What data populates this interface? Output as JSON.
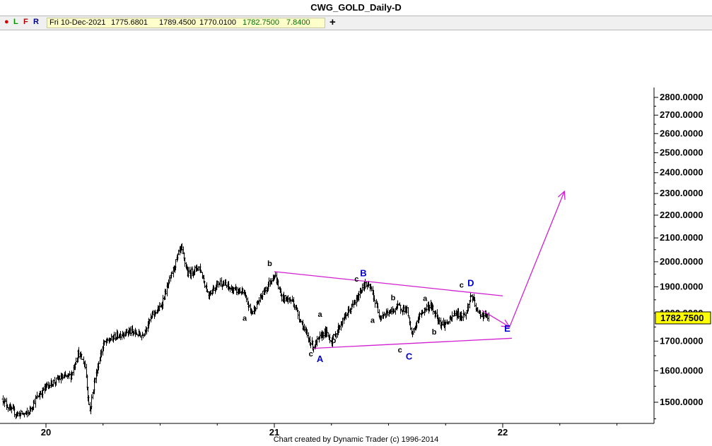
{
  "window": {
    "title": "CWG_GOLD_Daily-D"
  },
  "toolbar": {
    "buttons": [
      {
        "glyph": "●",
        "color": "#d00000"
      },
      {
        "glyph": "L",
        "color": "#009000"
      },
      {
        "glyph": "F",
        "color": "#b00000"
      },
      {
        "glyph": "R",
        "color": "#000080"
      }
    ],
    "plus_label": "+"
  },
  "info": {
    "date": "Fri 10-Dec-2021",
    "open": "1775.6801",
    "high": "1789.4500",
    "low": "1770.0100",
    "close": "1782.7500",
    "change": "7.8400"
  },
  "colors": {
    "bars": "#000000",
    "pattern": "#d020d0",
    "wave_major": "#0000cc",
    "wave_minor": "#000000",
    "last_price_bg": "#ffff00"
  },
  "footer": "Chart created by Dynamic Trader  (c) 1996-2014",
  "chart_data": {
    "type": "ohlc",
    "title": "CWG_GOLD_Daily-D",
    "y_ticks": [
      "1500.0000",
      "1600.0000",
      "1700.0000",
      "1800.0000",
      "1900.0000",
      "2000.0000",
      "2100.0000",
      "2200.0000",
      "2300.0000",
      "2400.0000",
      "2500.0000",
      "2600.0000",
      "2700.0000",
      "2800.0000"
    ],
    "y_tick_values": [
      1500,
      1600,
      1700,
      1800,
      1900,
      2000,
      2100,
      2200,
      2300,
      2400,
      2500,
      2600,
      2700,
      2800
    ],
    "x_ticks": [
      {
        "label": "20",
        "year": 2020.0
      },
      {
        "label": "21",
        "year": 2021.0
      },
      {
        "label": "22",
        "year": 2022.0
      }
    ],
    "last_price_label": "1782.7500",
    "last_price": 1782.75,
    "price_anchors": [
      [
        2019.81,
        1510
      ],
      [
        2019.84,
        1480
      ],
      [
        2019.87,
        1465
      ],
      [
        2019.92,
        1465
      ],
      [
        2019.95,
        1505
      ],
      [
        2020.0,
        1550
      ],
      [
        2020.06,
        1575
      ],
      [
        2020.11,
        1585
      ],
      [
        2020.14,
        1660
      ],
      [
        2020.17,
        1620
      ],
      [
        2020.19,
        1470
      ],
      [
        2020.21,
        1560
      ],
      [
        2020.25,
        1690
      ],
      [
        2020.3,
        1715
      ],
      [
        2020.36,
        1735
      ],
      [
        2020.42,
        1720
      ],
      [
        2020.47,
        1800
      ],
      [
        2020.5,
        1820
      ],
      [
        2020.55,
        1950
      ],
      [
        2020.59,
        2060
      ],
      [
        2020.62,
        1950
      ],
      [
        2020.67,
        1980
      ],
      [
        2020.71,
        1870
      ],
      [
        2020.76,
        1920
      ],
      [
        2020.81,
        1890
      ],
      [
        2020.86,
        1880
      ],
      [
        2020.9,
        1800
      ],
      [
        2020.95,
        1875
      ],
      [
        2021.0,
        1950
      ],
      [
        2021.03,
        1860
      ],
      [
        2021.08,
        1845
      ],
      [
        2021.14,
        1720
      ],
      [
        2021.17,
        1680
      ],
      [
        2021.22,
        1735
      ],
      [
        2021.25,
        1700
      ],
      [
        2021.31,
        1790
      ],
      [
        2021.36,
        1850
      ],
      [
        2021.39,
        1910
      ],
      [
        2021.42,
        1895
      ],
      [
        2021.46,
        1790
      ],
      [
        2021.51,
        1805
      ],
      [
        2021.54,
        1825
      ],
      [
        2021.58,
        1810
      ],
      [
        2021.6,
        1720
      ],
      [
        2021.64,
        1800
      ],
      [
        2021.68,
        1830
      ],
      [
        2021.71,
        1790
      ],
      [
        2021.73,
        1760
      ],
      [
        2021.76,
        1765
      ],
      [
        2021.79,
        1800
      ],
      [
        2021.82,
        1790
      ],
      [
        2021.84,
        1800
      ],
      [
        2021.86,
        1870
      ],
      [
        2021.89,
        1800
      ],
      [
        2021.91,
        1795
      ],
      [
        2021.94,
        1782.75
      ]
    ],
    "triangle_lines": [
      {
        "from": [
          2021.0,
          1960
        ],
        "to": [
          2022.0,
          1865
        ]
      },
      {
        "from": [
          2021.17,
          1675
        ],
        "to": [
          2022.04,
          1710
        ]
      }
    ],
    "projection_arrows": [
      {
        "from": [
          2021.91,
          1810
        ],
        "to": [
          2022.03,
          1750
        ]
      },
      {
        "from": [
          2022.03,
          1750
        ],
        "to": [
          2022.27,
          2310
        ]
      }
    ],
    "wave_labels": [
      {
        "text": "b",
        "x": 2020.98,
        "y": 1982,
        "kind": "minor"
      },
      {
        "text": "a",
        "x": 2020.87,
        "y": 1773,
        "kind": "minor"
      },
      {
        "text": "c",
        "x": 2021.16,
        "y": 1648,
        "kind": "minor"
      },
      {
        "text": "A",
        "x": 2021.2,
        "y": 1629,
        "kind": "major"
      },
      {
        "text": "a",
        "x": 2021.2,
        "y": 1786,
        "kind": "minor"
      },
      {
        "text": "b",
        "x": 2021.26,
        "y": 1693,
        "kind": "minor"
      },
      {
        "text": "c",
        "x": 2021.36,
        "y": 1920,
        "kind": "minor"
      },
      {
        "text": "B",
        "x": 2021.39,
        "y": 1941,
        "kind": "major"
      },
      {
        "text": "a",
        "x": 2021.43,
        "y": 1765,
        "kind": "minor"
      },
      {
        "text": "b",
        "x": 2021.52,
        "y": 1848,
        "kind": "minor"
      },
      {
        "text": "c",
        "x": 2021.55,
        "y": 1661,
        "kind": "minor"
      },
      {
        "text": "C",
        "x": 2021.59,
        "y": 1637,
        "kind": "major"
      },
      {
        "text": "a",
        "x": 2021.66,
        "y": 1846,
        "kind": "minor"
      },
      {
        "text": "b",
        "x": 2021.7,
        "y": 1723,
        "kind": "minor"
      },
      {
        "text": "c",
        "x": 2021.82,
        "y": 1897,
        "kind": "minor"
      },
      {
        "text": "D",
        "x": 2021.86,
        "y": 1903,
        "kind": "major"
      },
      {
        "text": "E",
        "x": 2022.02,
        "y": 1733,
        "kind": "major"
      }
    ]
  }
}
